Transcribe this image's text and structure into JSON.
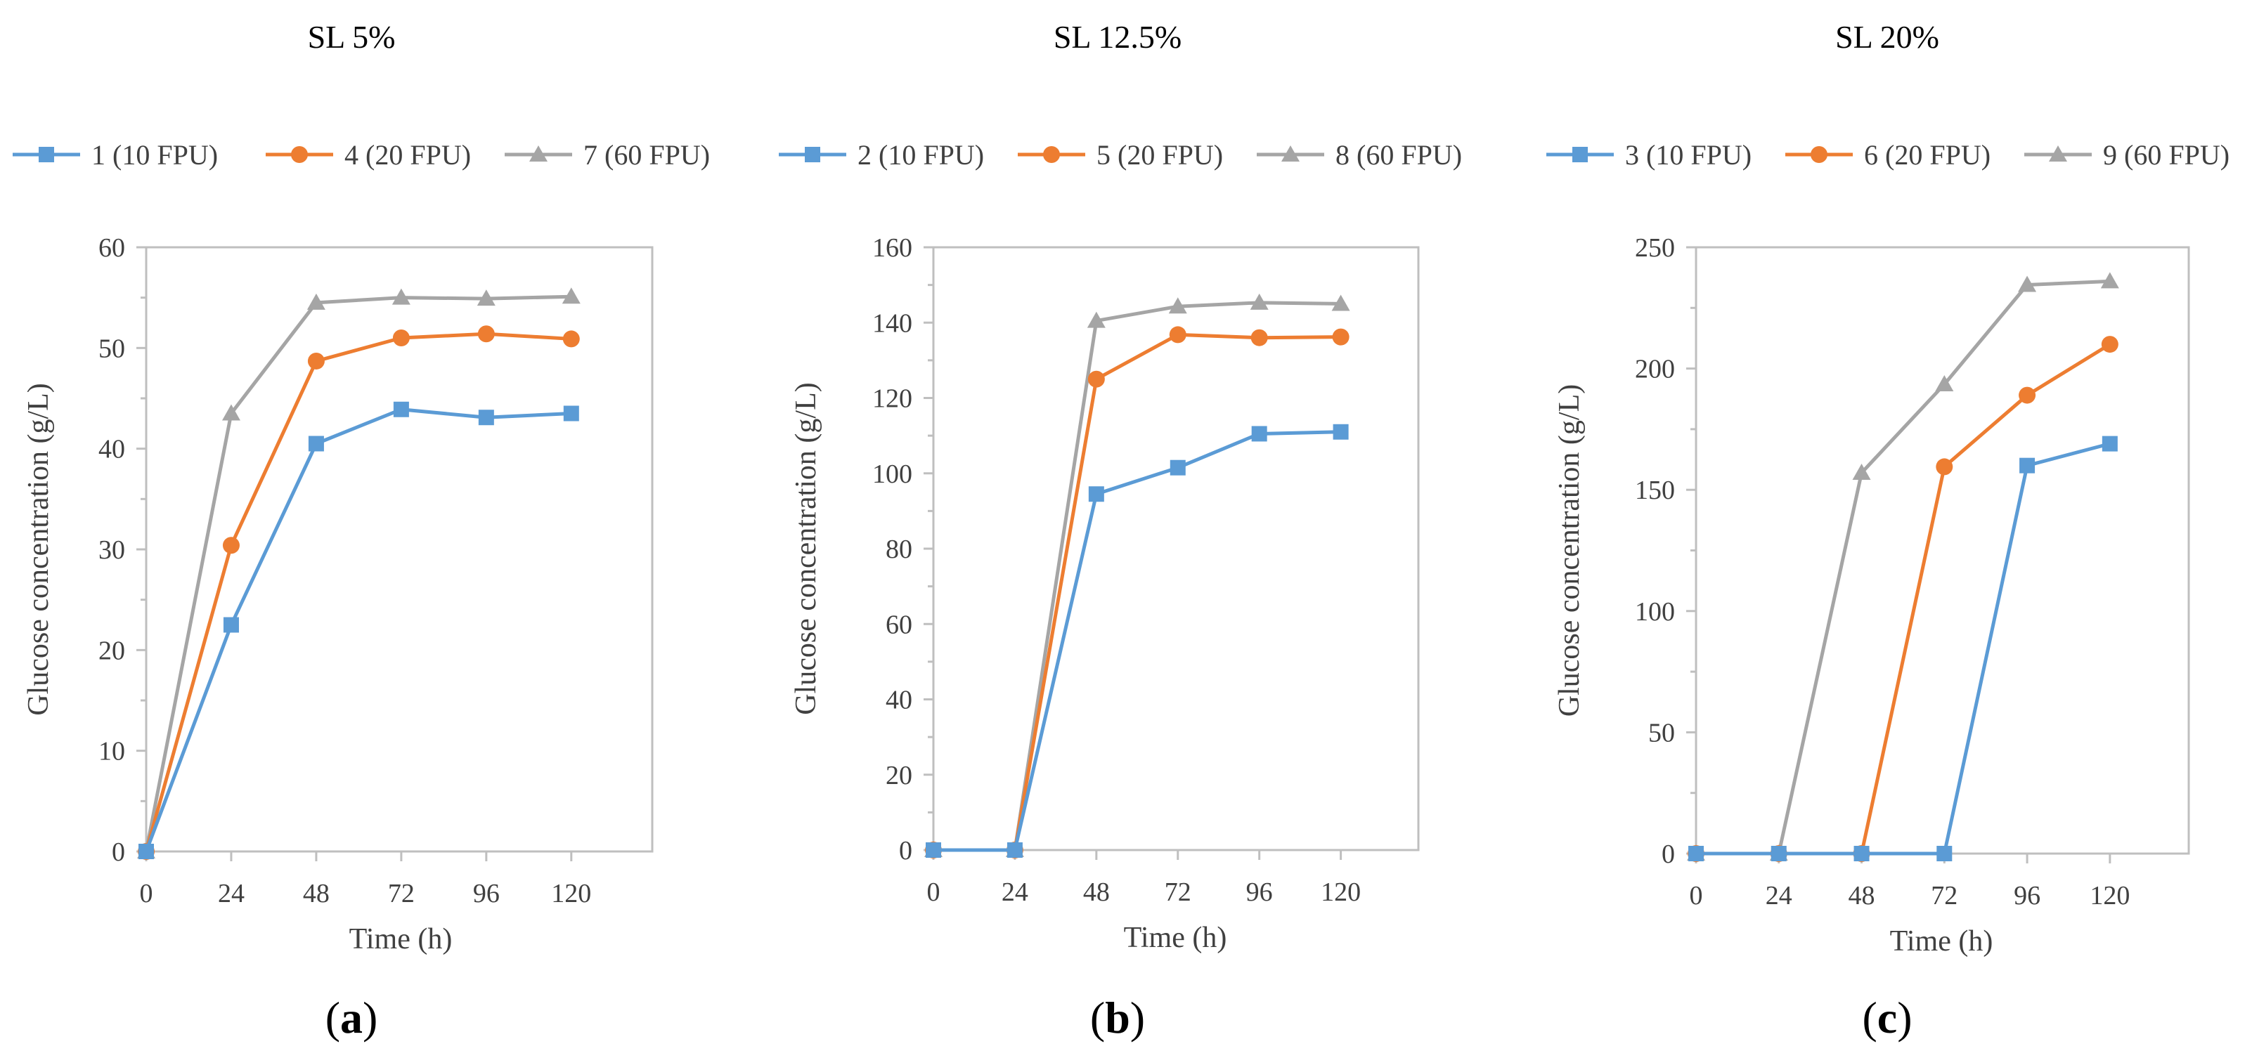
{
  "chart_data": [
    {
      "type": "line",
      "panel_label": "a",
      "title": "SL 5%",
      "xlabel": "Time (h)",
      "ylabel": "Glucose concentration (g/L)",
      "x": [
        0,
        24,
        48,
        72,
        96,
        120
      ],
      "x_ticks": [
        "0",
        "24",
        "48",
        "72",
        "96",
        "120"
      ],
      "ylim": [
        0,
        60
      ],
      "y_ticks": [
        "0",
        "10",
        "20",
        "30",
        "40",
        "50",
        "60"
      ],
      "y_step": 10,
      "y_minor": 5,
      "series": [
        {
          "name": "1 (10 FPU)",
          "color": "#5B9BD5",
          "marker": "square",
          "values": [
            0,
            22.5,
            40.5,
            43.9,
            43.1,
            43.5
          ]
        },
        {
          "name": "4 (20 FPU)",
          "color": "#ED7D31",
          "marker": "circle",
          "values": [
            0,
            30.4,
            48.7,
            51.0,
            51.4,
            50.9
          ]
        },
        {
          "name": "7 (60 FPU)",
          "color": "#A5A5A5",
          "marker": "triangle",
          "values": [
            0,
            43.5,
            54.5,
            55.0,
            54.9,
            55.1
          ]
        }
      ]
    },
    {
      "type": "line",
      "panel_label": "b",
      "title": "SL 12.5%",
      "xlabel": "Time (h)",
      "ylabel": "Glucose concentration (g/L)",
      "x": [
        0,
        24,
        48,
        72,
        96,
        120
      ],
      "x_ticks": [
        "0",
        "24",
        "48",
        "72",
        "96",
        "120"
      ],
      "ylim": [
        0,
        160
      ],
      "y_ticks": [
        "0",
        "20",
        "40",
        "60",
        "80",
        "100",
        "120",
        "140",
        "160"
      ],
      "y_step": 20,
      "y_minor": 10,
      "series": [
        {
          "name": "2 (10 FPU)",
          "color": "#5B9BD5",
          "marker": "square",
          "values": [
            0,
            0,
            94.5,
            101.5,
            110.5,
            111.0
          ]
        },
        {
          "name": "5 (20 FPU)",
          "color": "#ED7D31",
          "marker": "circle",
          "values": [
            0,
            0,
            125.0,
            136.8,
            136.0,
            136.2
          ]
        },
        {
          "name": "8 (60 FPU)",
          "color": "#A5A5A5",
          "marker": "triangle",
          "values": [
            0,
            0,
            140.5,
            144.3,
            145.3,
            145.0
          ]
        }
      ]
    },
    {
      "type": "line",
      "panel_label": "c",
      "title": "SL 20%",
      "xlabel": "Time (h)",
      "ylabel": "Glucose concentration (g/L)",
      "x": [
        0,
        24,
        48,
        72,
        96,
        120
      ],
      "x_ticks": [
        "0",
        "24",
        "48",
        "72",
        "96",
        "120"
      ],
      "ylim": [
        0,
        250
      ],
      "y_ticks": [
        "0",
        "50",
        "100",
        "150",
        "200",
        "250"
      ],
      "y_step": 50,
      "y_minor": 25,
      "series": [
        {
          "name": "3 (10 FPU)",
          "color": "#5B9BD5",
          "marker": "square",
          "values": [
            0,
            0,
            0,
            0,
            160.0,
            169.0
          ]
        },
        {
          "name": "6 (20 FPU)",
          "color": "#ED7D31",
          "marker": "circle",
          "values": [
            0,
            0,
            0,
            159.5,
            189.0,
            210.0
          ]
        },
        {
          "name": "9 (60 FPU)",
          "color": "#A5A5A5",
          "marker": "triangle",
          "values": [
            0,
            0,
            157.0,
            193.5,
            234.5,
            236.0
          ]
        }
      ]
    }
  ]
}
